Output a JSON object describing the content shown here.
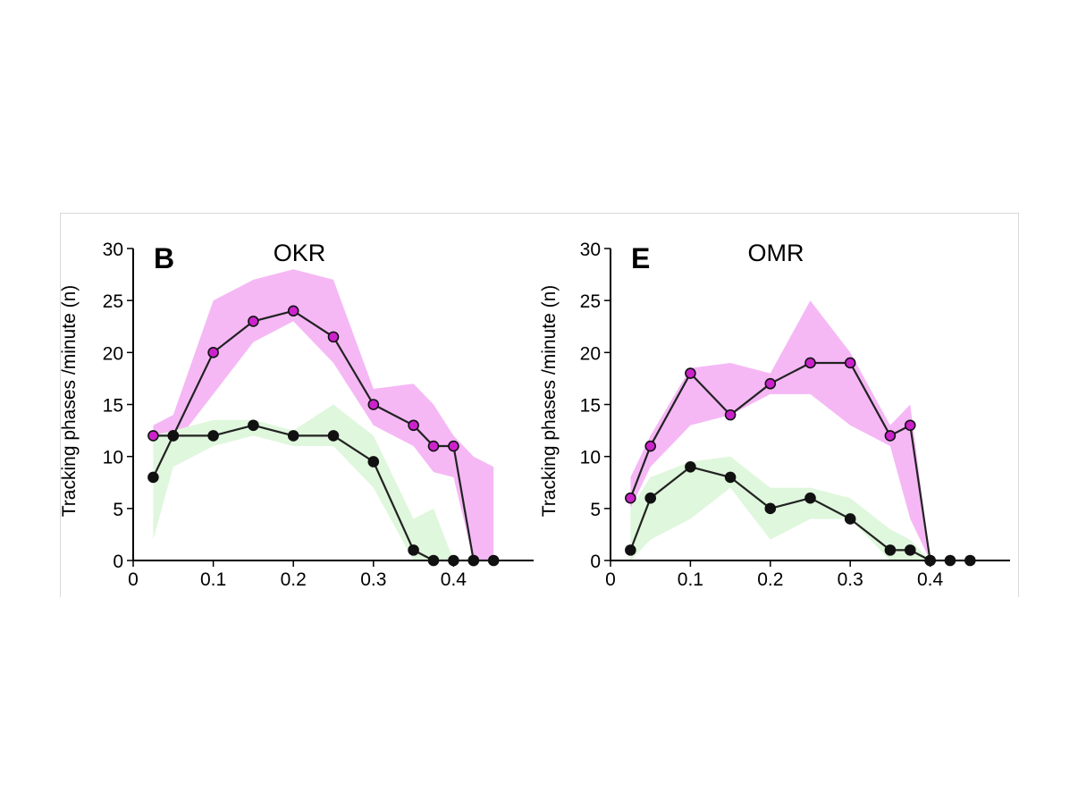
{
  "chart_data": [
    {
      "type": "line",
      "panel_letter": "B",
      "title": "OKR",
      "ylabel": "Tracking phases /minute (n)",
      "xlabel": "",
      "xlim": [
        0,
        0.5
      ],
      "ylim": [
        0,
        30
      ],
      "xticks": [
        0,
        0.1,
        0.2,
        0.3,
        0.4
      ],
      "xtick_labels": [
        "0",
        "0.1",
        "0.2",
        "0.3",
        "0.4"
      ],
      "yticks": [
        0,
        5,
        10,
        15,
        20,
        25,
        30
      ],
      "ytick_labels": [
        "0",
        "5",
        "10",
        "15",
        "20",
        "25",
        "30"
      ],
      "grid": false,
      "series": [
        {
          "color": "#cc22cc",
          "band_color": "#f5b8f5",
          "x": [
            0.025,
            0.05,
            0.1,
            0.15,
            0.2,
            0.25,
            0.3,
            0.35,
            0.375,
            0.4,
            0.425
          ],
          "y": [
            12,
            12,
            20,
            23,
            24,
            21.5,
            15,
            13,
            11,
            11,
            0
          ],
          "band_x": [
            0.025,
            0.05,
            0.1,
            0.15,
            0.2,
            0.25,
            0.3,
            0.35,
            0.375,
            0.4,
            0.425,
            0.45
          ],
          "band_upper": [
            13,
            14,
            25,
            27,
            28,
            27,
            16.5,
            17,
            15,
            12,
            10,
            9
          ],
          "band_lower": [
            11,
            11,
            16,
            21,
            23,
            19,
            13,
            11,
            8.5,
            8,
            0,
            0
          ]
        },
        {
          "color": "#111111",
          "band_color": "#dff7dc",
          "x": [
            0.025,
            0.05,
            0.1,
            0.15,
            0.2,
            0.25,
            0.3,
            0.35,
            0.375,
            0.4,
            0.425,
            0.45
          ],
          "y": [
            8,
            12,
            12,
            13,
            12,
            12,
            9.5,
            1,
            0,
            0,
            0,
            0
          ],
          "band_x": [
            0.025,
            0.05,
            0.1,
            0.15,
            0.2,
            0.25,
            0.3,
            0.35,
            0.375,
            0.4
          ],
          "band_upper": [
            12,
            12.5,
            13.5,
            13.5,
            12.5,
            15,
            12,
            4,
            5,
            0
          ],
          "band_lower": [
            2,
            9,
            11,
            12,
            11,
            11,
            7,
            0,
            0,
            0
          ]
        }
      ]
    },
    {
      "type": "line",
      "panel_letter": "E",
      "title": "OMR",
      "ylabel": "Tracking phases /minute (n)",
      "xlabel": "",
      "xlim": [
        0,
        0.5
      ],
      "ylim": [
        0,
        30
      ],
      "xticks": [
        0,
        0.1,
        0.2,
        0.3,
        0.4
      ],
      "xtick_labels": [
        "0",
        "0.1",
        "0.2",
        "0.3",
        "0.4"
      ],
      "yticks": [
        0,
        5,
        10,
        15,
        20,
        25,
        30
      ],
      "ytick_labels": [
        "0",
        "5",
        "10",
        "15",
        "20",
        "25",
        "30"
      ],
      "grid": false,
      "series": [
        {
          "color": "#cc22cc",
          "band_color": "#f5b8f5",
          "x": [
            0.025,
            0.05,
            0.1,
            0.15,
            0.2,
            0.25,
            0.3,
            0.35,
            0.375,
            0.4
          ],
          "y": [
            6,
            11,
            18,
            14,
            17,
            19,
            19,
            12,
            13,
            0
          ],
          "band_x": [
            0.025,
            0.05,
            0.1,
            0.15,
            0.2,
            0.25,
            0.3,
            0.35,
            0.375,
            0.4
          ],
          "band_upper": [
            8,
            12,
            18.5,
            19,
            18,
            25,
            20,
            13,
            15,
            0
          ],
          "band_lower": [
            5,
            9,
            13,
            14,
            16,
            16,
            13,
            11,
            4,
            0
          ]
        },
        {
          "color": "#111111",
          "band_color": "#dff7dc",
          "x": [
            0.025,
            0.05,
            0.1,
            0.15,
            0.2,
            0.25,
            0.3,
            0.35,
            0.375,
            0.4,
            0.425,
            0.45
          ],
          "y": [
            1,
            6,
            9,
            8,
            5,
            6,
            4,
            1,
            1,
            0,
            0,
            0
          ],
          "band_x": [
            0.025,
            0.05,
            0.1,
            0.15,
            0.2,
            0.25,
            0.3,
            0.35,
            0.375,
            0.4
          ],
          "band_upper": [
            5,
            8,
            9.5,
            10,
            7,
            7,
            6,
            3,
            2,
            0
          ],
          "band_lower": [
            0,
            2,
            4,
            7,
            2,
            4,
            4,
            0,
            0,
            0
          ]
        }
      ]
    }
  ]
}
